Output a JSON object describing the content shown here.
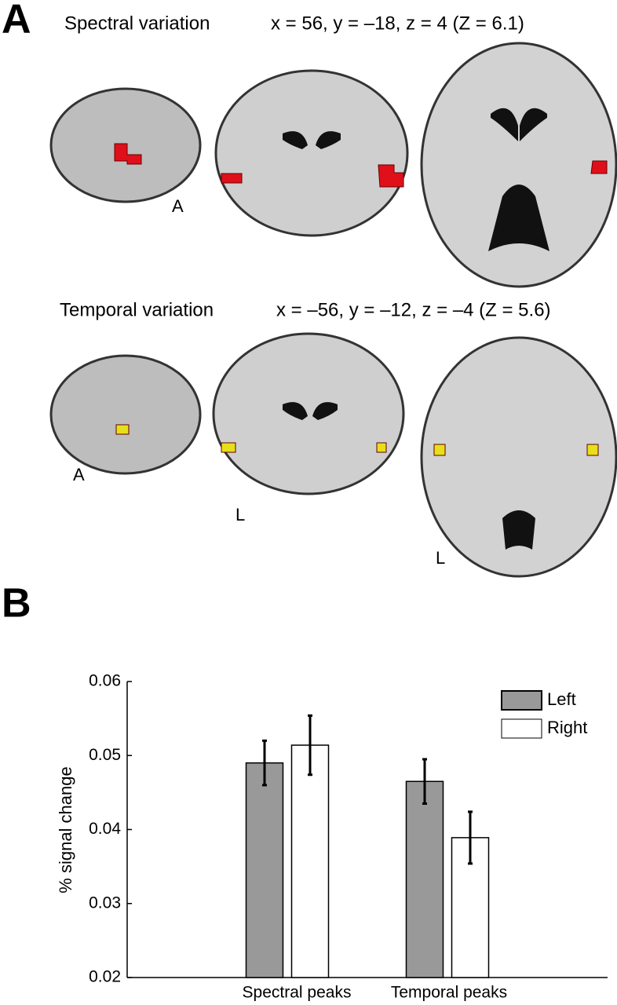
{
  "panel_a": {
    "label": "A",
    "rows": [
      {
        "title": "Spectral variation",
        "coords": "x = 56, y = –18, z = 4 (Z = 6.1)",
        "sagittal_label": "A"
      },
      {
        "title": "Temporal variation",
        "coords": "x = –56, y = –12, z = –4 (Z = 5.6)",
        "sagittal_label": "A",
        "coronal_label": "L",
        "axial_label": "L"
      }
    ]
  },
  "panel_b": {
    "label": "B"
  },
  "chart_data": {
    "type": "bar",
    "categories": [
      "Spectral peaks",
      "Temporal peaks"
    ],
    "series": [
      {
        "name": "Left",
        "color": "#999999",
        "values": [
          0.049,
          0.0465
        ],
        "errors": [
          0.003,
          0.003
        ]
      },
      {
        "name": "Right",
        "color": "#ffffff",
        "values": [
          0.0514,
          0.0389
        ],
        "errors": [
          0.004,
          0.0035
        ]
      }
    ],
    "ylabel": "% signal change",
    "ylim": [
      0.02,
      0.06
    ],
    "yticks": [
      0.02,
      0.03,
      0.04,
      0.05,
      0.06
    ],
    "legend": "upper right"
  }
}
